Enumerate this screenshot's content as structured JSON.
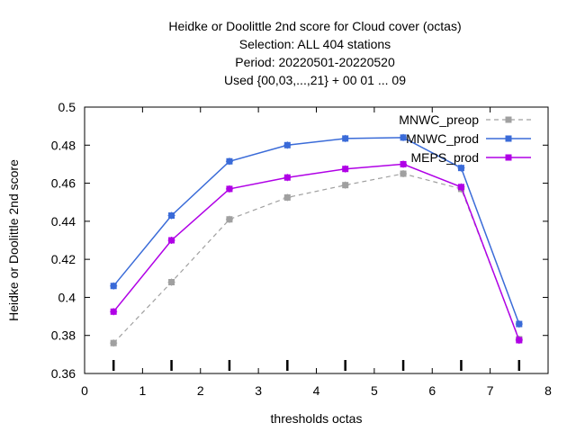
{
  "chart_data": {
    "type": "line",
    "title_lines": [
      "Heidke or Doolittle 2nd score  for Cloud cover (octas)",
      "Selection: ALL    404 stations",
      "Period: 20220501-20220520",
      "Used {00,03,...,21} + 00 01 ... 09"
    ],
    "xlabel": "thresholds octas",
    "ylabel": "Heidke or Doolittle 2nd score",
    "xlim": [
      0,
      8
    ],
    "ylim": [
      0.36,
      0.5
    ],
    "x_ticks": [
      0,
      1,
      2,
      3,
      4,
      5,
      6,
      7,
      8
    ],
    "x_tick_labels": [
      "0",
      "1",
      "2",
      "3",
      "4",
      "5",
      "6",
      "7",
      "8"
    ],
    "y_ticks": [
      0.36,
      0.38,
      0.4,
      0.42,
      0.44,
      0.46,
      0.48,
      0.5
    ],
    "y_tick_labels": [
      "0.36",
      "0.38",
      "0.4",
      "0.42",
      "0.44",
      "0.46",
      "0.48",
      "0.5"
    ],
    "x": [
      0.5,
      1.5,
      2.5,
      3.5,
      4.5,
      5.5,
      6.5,
      7.5
    ],
    "series": [
      {
        "name": "MNWC_preop",
        "values": [
          0.376,
          0.408,
          0.441,
          0.4525,
          0.459,
          0.465,
          0.457,
          0.378
        ],
        "color": "#a0a0a0",
        "dashed": true
      },
      {
        "name": "MNWC_prod",
        "values": [
          0.406,
          0.443,
          0.4715,
          0.48,
          0.4835,
          0.484,
          0.468,
          0.386
        ],
        "color": "#3a6bd8",
        "dashed": false
      },
      {
        "name": "MEPS_prod",
        "values": [
          0.3925,
          0.43,
          0.457,
          0.463,
          0.4675,
          0.47,
          0.458,
          0.3775
        ],
        "color": "#b000e6",
        "dashed": false
      }
    ],
    "bottom_markers_x": [
      0.5,
      1.5,
      2.5,
      3.5,
      4.5,
      5.5,
      6.5,
      7.5
    ],
    "grid": false,
    "legend_position": "top-right"
  }
}
